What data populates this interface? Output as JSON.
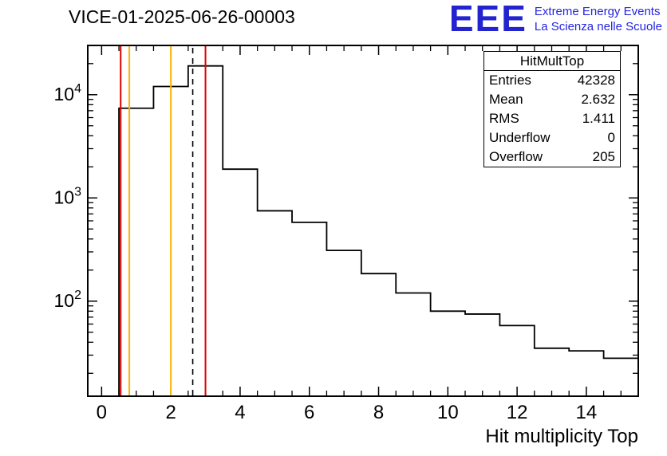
{
  "title": "VICE-01-2025-06-26-00003",
  "logo": {
    "acronym": "EEE",
    "line1": "Extreme Energy Events",
    "line2": "La Scienza nelle Scuole",
    "color": "#2323cf"
  },
  "stats": {
    "header": "HitMultTop",
    "rows": [
      {
        "label": "Entries",
        "value": "42328"
      },
      {
        "label": "Mean",
        "value": "2.632"
      },
      {
        "label": "RMS",
        "value": "1.411"
      },
      {
        "label": "Underflow",
        "value": "0"
      },
      {
        "label": "Overflow",
        "value": "205"
      }
    ]
  },
  "chart_data": {
    "type": "histogram-step",
    "title": "VICE-01-2025-06-26-00003",
    "xlabel": "Hit multiplicity Top",
    "ylabel": "",
    "y_scale": "log",
    "xlim": [
      -0.4,
      15.5
    ],
    "ylim_log": [
      12,
      30000
    ],
    "grid": false,
    "x_major_ticks": [
      0,
      2,
      4,
      6,
      8,
      10,
      12,
      14
    ],
    "x_minor_step": 0.5,
    "y_decade_ticks": [
      {
        "value": 100,
        "base": "10",
        "exp": "2"
      },
      {
        "value": 1000,
        "base": "10",
        "exp": "3"
      },
      {
        "value": 10000,
        "base": "10",
        "exp": "4"
      }
    ],
    "bin_edges": [
      0.5,
      1.5,
      2.5,
      3.5,
      4.5,
      5.5,
      6.5,
      7.5,
      8.5,
      9.5,
      10.5,
      11.5,
      12.5,
      13.5,
      14.5,
      15.5
    ],
    "bin_values": [
      7400,
      12000,
      19000,
      1900,
      750,
      580,
      310,
      185,
      120,
      80,
      75,
      58,
      35,
      33,
      28
    ],
    "line_color": "#000000",
    "marker_lines": [
      {
        "x": 0.55,
        "color": "#e00000",
        "style": "solid",
        "name": "red-marker-left"
      },
      {
        "x": 0.8,
        "color": "#ffb300",
        "style": "solid",
        "name": "yellow-marker-left"
      },
      {
        "x": 2.0,
        "color": "#ffb300",
        "style": "solid",
        "name": "yellow-marker-mid"
      },
      {
        "x": 2.632,
        "color": "#000000",
        "style": "dashed",
        "name": "mean-dashed-marker"
      },
      {
        "x": 3.0,
        "color": "#e00000",
        "style": "solid",
        "name": "red-marker-mid"
      }
    ]
  }
}
